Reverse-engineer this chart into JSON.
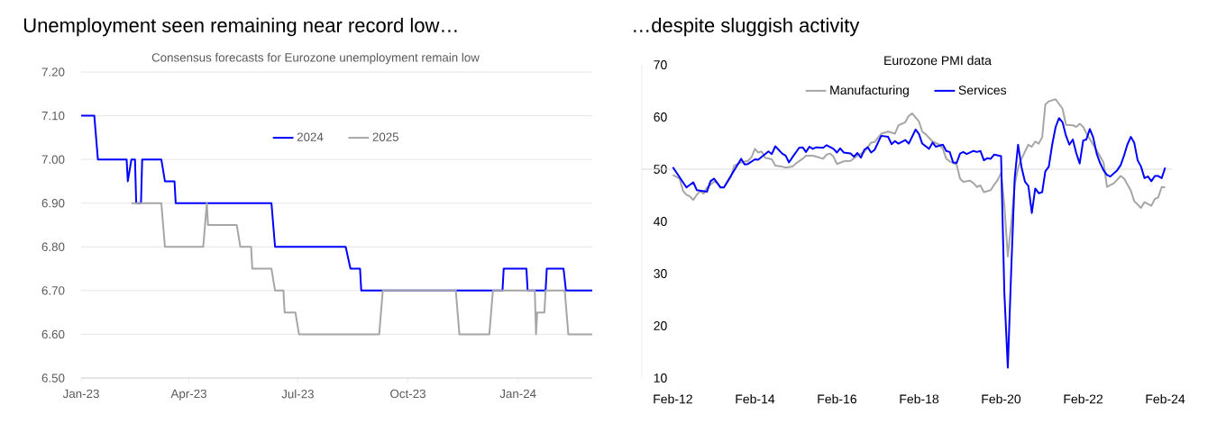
{
  "chart_data": [
    {
      "type": "line",
      "title": "Unemployment seen remaining near record low…",
      "subtitle": "Consensus forecasts for Eurozone unemployment remain low",
      "xlim": [
        "2023-01-01",
        "2024-03-03"
      ],
      "xticks": [
        {
          "value": "2023-01-01",
          "label": "Jan-23"
        },
        {
          "value": "2023-04-01",
          "label": "Apr-23"
        },
        {
          "value": "2023-07-01",
          "label": "Jul-23"
        },
        {
          "value": "2023-10-01",
          "label": "Oct-23"
        },
        {
          "value": "2024-01-01",
          "label": "Jan-24"
        }
      ],
      "ylim": [
        6.5,
        7.2
      ],
      "yticks": [
        {
          "value": 6.5,
          "label": "6.50"
        },
        {
          "value": 6.6,
          "label": "6.60"
        },
        {
          "value": 6.7,
          "label": "6.70"
        },
        {
          "value": 6.8,
          "label": "6.80"
        },
        {
          "value": 6.9,
          "label": "6.90"
        },
        {
          "value": 7.0,
          "label": "7.00"
        },
        {
          "value": 7.1,
          "label": "7.10"
        },
        {
          "value": 7.2,
          "label": "7.20"
        }
      ],
      "grid": "y",
      "legend": "top",
      "series": [
        {
          "name": "2024",
          "color": "#0000ff",
          "x": [
            "2023-01-01",
            "2023-01-12",
            "2023-01-15",
            "2023-02-08",
            "2023-02-09",
            "2023-02-12",
            "2023-02-15",
            "2023-02-16",
            "2023-02-20",
            "2023-02-21",
            "2023-03-09",
            "2023-03-12",
            "2023-03-20",
            "2023-03-21",
            "2023-06-09",
            "2023-06-12",
            "2023-08-10",
            "2023-08-14",
            "2023-08-22",
            "2023-08-23",
            "2023-12-19",
            "2023-12-20",
            "2024-01-08",
            "2024-01-09",
            "2024-01-24",
            "2024-01-25",
            "2024-02-08",
            "2024-02-10",
            "2024-03-03"
          ],
          "values": [
            7.1,
            7.1,
            7.0,
            7.0,
            6.95,
            7.0,
            7.0,
            6.9,
            6.9,
            7.0,
            7.0,
            6.95,
            6.95,
            6.9,
            6.9,
            6.8,
            6.8,
            6.75,
            6.75,
            6.7,
            6.7,
            6.75,
            6.75,
            6.7,
            6.7,
            6.75,
            6.75,
            6.7,
            6.7
          ]
        },
        {
          "name": "2025",
          "color": "#a6a6a6",
          "x": [
            "2023-02-12",
            "2023-03-09",
            "2023-03-12",
            "2023-04-13",
            "2023-04-16",
            "2023-04-17",
            "2023-05-11",
            "2023-05-14",
            "2023-05-23",
            "2023-05-24",
            "2023-06-09",
            "2023-06-12",
            "2023-06-19",
            "2023-06-20",
            "2023-06-29",
            "2023-07-02",
            "2023-09-07",
            "2023-09-10",
            "2023-11-10",
            "2023-11-13",
            "2023-12-08",
            "2023-12-11",
            "2024-01-15",
            "2024-01-16",
            "2024-01-17",
            "2024-01-23",
            "2024-01-24",
            "2024-02-09",
            "2024-02-12",
            "2024-03-03"
          ],
          "values": [
            6.9,
            6.9,
            6.8,
            6.8,
            6.9,
            6.85,
            6.85,
            6.8,
            6.8,
            6.75,
            6.75,
            6.7,
            6.7,
            6.65,
            6.65,
            6.6,
            6.6,
            6.7,
            6.7,
            6.6,
            6.6,
            6.7,
            6.7,
            6.6,
            6.65,
            6.65,
            6.7,
            6.7,
            6.6,
            6.6
          ]
        }
      ]
    },
    {
      "type": "line",
      "title": "…despite sluggish activity",
      "subtitle": "Eurozone PMI data",
      "xlim": [
        "2011-05",
        "2024-04"
      ],
      "xticks": [
        {
          "value": "2012-02",
          "label": "Feb-12"
        },
        {
          "value": "2014-02",
          "label": "Feb-14"
        },
        {
          "value": "2016-02",
          "label": "Feb-16"
        },
        {
          "value": "2018-02",
          "label": "Feb-18"
        },
        {
          "value": "2020-02",
          "label": "Feb-20"
        },
        {
          "value": "2022-02",
          "label": "Feb-22"
        },
        {
          "value": "2024-02",
          "label": "Feb-24"
        }
      ],
      "ylim": [
        10,
        70
      ],
      "yticks": [
        10,
        20,
        30,
        40,
        50,
        60,
        70
      ],
      "legend": "top",
      "ref_lines": [
        {
          "axis": "y",
          "value": 50,
          "color": "#d9d9d9"
        }
      ],
      "series": [
        {
          "name": "Manufacturing",
          "color": "#a6a6a6",
          "x": [
            "2012-02",
            "2012-04",
            "2012-05",
            "2012-06",
            "2012-07",
            "2012-08",
            "2012-09",
            "2012-10",
            "2012-11",
            "2012-12",
            "2013-02",
            "2013-03",
            "2013-04",
            "2013-05",
            "2013-07",
            "2013-08",
            "2013-10",
            "2013-12",
            "2014-01",
            "2014-02",
            "2014-03",
            "2014-04",
            "2014-05",
            "2014-07",
            "2014-08",
            "2014-10",
            "2014-11",
            "2015-01",
            "2015-02",
            "2015-04",
            "2015-05",
            "2015-07",
            "2015-08",
            "2015-10",
            "2015-11",
            "2015-12",
            "2016-01",
            "2016-02",
            "2016-04",
            "2016-06",
            "2016-08",
            "2016-10",
            "2016-12",
            "2017-01",
            "2017-03",
            "2017-05",
            "2017-07",
            "2017-08",
            "2017-10",
            "2017-11",
            "2017-12",
            "2018-02",
            "2018-03",
            "2018-04",
            "2018-05",
            "2018-06",
            "2018-08",
            "2018-09",
            "2018-10",
            "2018-11",
            "2019-01",
            "2019-02",
            "2019-03",
            "2019-05",
            "2019-06",
            "2019-07",
            "2019-08",
            "2019-09",
            "2019-11",
            "2019-12",
            "2020-01",
            "2020-02",
            "2020-03",
            "2020-04",
            "2020-05",
            "2020-06",
            "2020-07",
            "2020-08",
            "2020-10",
            "2020-11",
            "2020-12",
            "2021-01",
            "2021-02",
            "2021-03",
            "2021-04",
            "2021-06",
            "2021-07",
            "2021-08",
            "2021-09",
            "2021-11",
            "2021-12",
            "2022-01",
            "2022-02",
            "2022-03",
            "2022-06",
            "2022-08",
            "2022-09",
            "2022-11",
            "2023-01",
            "2023-02",
            "2023-04",
            "2023-05",
            "2023-07",
            "2023-08",
            "2023-10",
            "2023-11",
            "2023-12",
            "2024-01",
            "2024-02"
          ],
          "values": [
            48.9,
            48.2,
            45.9,
            45.1,
            44.8,
            44.1,
            45.1,
            45.8,
            45.3,
            46.5,
            47.6,
            47.4,
            46.5,
            46.5,
            48.5,
            50.7,
            51.3,
            51.6,
            52.3,
            53.9,
            53.2,
            53.4,
            52.2,
            51.9,
            50.7,
            50.5,
            50.3,
            50.5,
            51.1,
            52.0,
            52.6,
            52.6,
            52.4,
            52.0,
            52.8,
            53.0,
            52.4,
            51.0,
            51.5,
            51.6,
            52.6,
            53.3,
            55.1,
            55.2,
            56.8,
            57.2,
            56.8,
            58.4,
            59.0,
            60.2,
            60.7,
            59.1,
            57.2,
            56.7,
            56.0,
            55.3,
            54.7,
            53.9,
            52.0,
            51.5,
            50.9,
            48.2,
            47.6,
            47.8,
            47.3,
            46.6,
            46.9,
            45.6,
            46.0,
            47.0,
            47.9,
            49.3,
            43.1,
            33.3,
            39.4,
            47.0,
            50.2,
            52.0,
            54.7,
            54.3,
            55.3,
            54.9,
            56.1,
            62.4,
            63.0,
            63.4,
            62.5,
            61.6,
            58.5,
            58.4,
            58.1,
            58.7,
            58.1,
            56.9,
            53.6,
            51.3,
            46.6,
            47.3,
            48.7,
            48.2,
            45.9,
            43.9,
            42.6,
            43.7,
            43.0,
            44.3,
            44.6,
            46.6,
            46.5
          ]
        },
        {
          "name": "Services",
          "color": "#0000ff",
          "x": [
            "2012-02",
            "2012-06",
            "2012-08",
            "2012-09",
            "2012-12",
            "2013-01",
            "2013-02",
            "2013-04",
            "2013-05",
            "2013-07",
            "2013-10",
            "2013-11",
            "2013-12",
            "2014-02",
            "2014-03",
            "2014-06",
            "2014-07",
            "2014-08",
            "2014-10",
            "2014-11",
            "2014-12",
            "2015-01",
            "2015-03",
            "2015-04",
            "2015-05",
            "2015-06",
            "2015-07",
            "2015-08",
            "2015-10",
            "2015-11",
            "2016-01",
            "2016-02",
            "2016-03",
            "2016-04",
            "2016-06",
            "2016-07",
            "2016-08",
            "2016-09",
            "2016-10",
            "2016-11",
            "2016-12",
            "2017-01",
            "2017-03",
            "2017-05",
            "2017-06",
            "2017-07",
            "2017-08",
            "2017-10",
            "2017-11",
            "2017-12",
            "2018-01",
            "2018-02",
            "2018-03",
            "2018-05",
            "2018-06",
            "2018-07",
            "2018-09",
            "2018-10",
            "2018-11",
            "2018-12",
            "2019-01",
            "2019-02",
            "2019-03",
            "2019-04",
            "2019-06",
            "2019-07",
            "2019-08",
            "2019-09",
            "2019-10",
            "2019-11",
            "2019-12",
            "2020-02",
            "2020-03",
            "2020-04",
            "2020-05",
            "2020-06",
            "2020-07",
            "2020-08",
            "2020-09",
            "2020-10",
            "2020-11",
            "2020-12",
            "2021-01",
            "2021-02",
            "2021-03",
            "2021-04",
            "2021-05",
            "2021-06",
            "2021-07",
            "2021-08",
            "2021-09",
            "2021-10",
            "2021-11",
            "2021-12",
            "2022-01",
            "2022-02",
            "2022-03",
            "2022-04",
            "2022-05",
            "2022-06",
            "2022-07",
            "2022-08",
            "2022-09",
            "2022-10",
            "2022-12",
            "2023-01",
            "2023-02",
            "2023-03",
            "2023-04",
            "2023-05",
            "2023-06",
            "2023-07",
            "2023-08",
            "2023-09",
            "2023-10",
            "2023-11",
            "2023-12",
            "2024-01",
            "2024-02"
          ],
          "values": [
            50.4,
            46.5,
            47.5,
            46.0,
            45.7,
            47.7,
            48.2,
            46.5,
            46.5,
            48.7,
            52.0,
            50.9,
            51.0,
            51.9,
            51.8,
            53.4,
            52.9,
            54.4,
            53.0,
            52.6,
            51.3,
            52.3,
            54.1,
            54.2,
            53.3,
            54.3,
            53.9,
            54.2,
            54.1,
            54.6,
            53.9,
            53.2,
            54.0,
            53.2,
            53.0,
            52.4,
            53.1,
            52.2,
            53.7,
            54.2,
            53.2,
            53.7,
            56.4,
            56.2,
            54.8,
            55.4,
            54.9,
            55.6,
            54.9,
            56.2,
            57.6,
            56.7,
            54.9,
            53.9,
            55.1,
            54.3,
            54.7,
            53.5,
            53.3,
            51.3,
            51.2,
            53.0,
            53.3,
            52.9,
            53.5,
            53.3,
            53.5,
            51.7,
            52.1,
            52.0,
            52.8,
            52.5,
            26.4,
            12.0,
            30.5,
            48.2,
            54.7,
            50.4,
            47.6,
            46.8,
            41.6,
            46.3,
            45.4,
            45.6,
            49.6,
            50.5,
            54.7,
            58.1,
            59.8,
            59.0,
            56.4,
            54.7,
            55.7,
            53.1,
            51.1,
            55.5,
            55.7,
            57.7,
            56.1,
            53.0,
            51.2,
            49.8,
            48.9,
            48.6,
            49.8,
            50.8,
            52.7,
            54.7,
            56.2,
            55.1,
            51.7,
            50.5,
            48.3,
            48.6,
            47.7,
            48.7,
            48.7,
            48.3,
            50.3
          ]
        }
      ]
    }
  ]
}
